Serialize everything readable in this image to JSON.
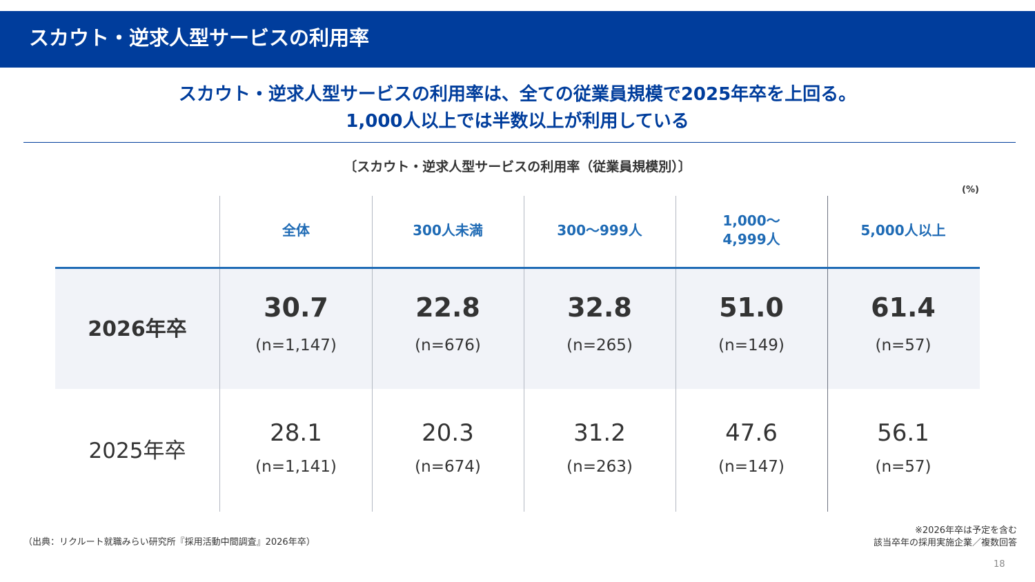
{
  "title": "スカウト・逆求人型サービスの利用率",
  "headline": {
    "line1": "スカウト・逆求人型サービスの利用率は、全ての従業員規模で2025年卒を上回る。",
    "line2": "1,000人以上では半数以上が利用している"
  },
  "table": {
    "title": "〔スカウト・逆求人型サービスの利用率（従業員規模別）〕",
    "unit": "(%)",
    "columns": [
      "全体",
      "300人未満",
      "300〜999人",
      "1,000〜\n4,999人",
      "5,000人以上"
    ],
    "rows": [
      {
        "label": "2026年卒",
        "values": [
          "30.7",
          "22.8",
          "32.8",
          "51.0",
          "61.4"
        ],
        "n": [
          "(n=1,147)",
          "(n=676)",
          "(n=265)",
          "(n=149)",
          "(n=57)"
        ]
      },
      {
        "label": "2025年卒",
        "values": [
          "28.1",
          "20.3",
          "31.2",
          "47.6",
          "56.1"
        ],
        "n": [
          "(n=1,141)",
          "(n=674)",
          "(n=263)",
          "(n=147)",
          "(n=57)"
        ]
      }
    ]
  },
  "footer": {
    "source": "（出典：リクルート就職みらい研究所『採用活動中間調査』2026年卒）",
    "note1": "※2026年卒は予定を含む",
    "note2": "該当卒年の採用実施企業／複数回答",
    "page": "18"
  },
  "colors": {
    "brand": "#003d9c",
    "accent": "#1f6bb5",
    "highlight_row": "#f1f3f8"
  }
}
